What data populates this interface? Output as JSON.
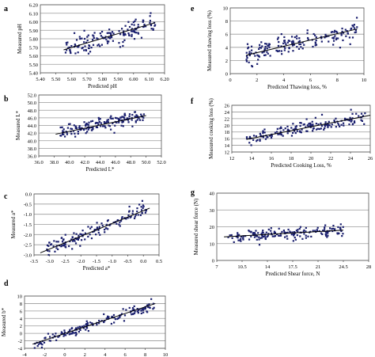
{
  "chart_data": [
    {
      "type": "scatter",
      "panel": "a",
      "xlabel": "Predicted pH",
      "ylabel": "Measured pH",
      "xlim": [
        5.4,
        6.2
      ],
      "ylim": [
        5.4,
        6.2
      ],
      "xticks": [
        "5.40",
        "5.50",
        "5.60",
        "5.70",
        "5.80",
        "5.90",
        "6.00",
        "6.10",
        "6.20"
      ],
      "yticks": [
        "5.40",
        "5.50",
        "5.60",
        "5.70",
        "5.80",
        "5.90",
        "6.00",
        "6.10",
        "6.20"
      ],
      "ytick_values": [
        5.4,
        5.5,
        5.6,
        5.7,
        5.8,
        5.9,
        6.0,
        6.1,
        6.2
      ],
      "grid": "horizontal",
      "x_range": [
        5.56,
        6.14
      ],
      "trend": [
        5.55,
        5.67,
        6.14,
        5.99
      ],
      "n_points": 150,
      "spread": 0.055
    },
    {
      "type": "scatter",
      "panel": "b",
      "xlabel": "Predicted L*",
      "ylabel": "Measured L*",
      "xlim": [
        36.0,
        52.0
      ],
      "ylim": [
        36.0,
        52.0
      ],
      "xticks": [
        "36.0",
        "38.0",
        "40.0",
        "42.0",
        "44.0",
        "46.0",
        "48.0",
        "50.0",
        "52.0"
      ],
      "yticks": [
        "36.0",
        "38.0",
        "40.0",
        "42.0",
        "44.0",
        "46.0",
        "48.0",
        "50.0",
        "52.0"
      ],
      "ytick_values": [
        36,
        38,
        40,
        42,
        44,
        46,
        48,
        50,
        52
      ],
      "grid": "horizontal",
      "x_range": [
        38.8,
        49.8
      ],
      "trend": [
        38.2,
        41.7,
        50.0,
        46.6
      ],
      "n_points": 160,
      "spread": 0.85
    },
    {
      "type": "scatter",
      "panel": "c",
      "xlabel": "Predicted a*",
      "ylabel": "Measured a*",
      "xlim": [
        -3.5,
        0.5
      ],
      "ylim": [
        -3.0,
        0.0
      ],
      "xticks": [
        "-3.5",
        "-3.0",
        "-2.5",
        "-2.0",
        "-1.5",
        "-1.0",
        "-0.5",
        "0.0",
        "0.5"
      ],
      "yticks": [
        "-3.0",
        "-2.5",
        "-2.0",
        "-1.5",
        "-1.0",
        "-0.5",
        "0.0"
      ],
      "ytick_values": [
        -3.0,
        -2.5,
        -2.0,
        -1.5,
        -1.0,
        -0.5,
        0.0
      ],
      "grid": "horizontal",
      "x_range": [
        -3.1,
        0.1
      ],
      "trend": [
        -3.3,
        -2.9,
        0.2,
        -0.7
      ],
      "n_points": 140,
      "spread": 0.18
    },
    {
      "type": "scatter",
      "panel": "d",
      "xlabel": "Predicted b*",
      "ylabel": "Measured b*",
      "xlim": [
        -4,
        10
      ],
      "ylim": [
        -4,
        10
      ],
      "xticks": [
        "-4",
        "-2",
        "0",
        "2",
        "4",
        "6",
        "8",
        "10"
      ],
      "yticks": [
        "-4",
        "-2",
        "0",
        "2",
        "4",
        "6",
        "8",
        "10"
      ],
      "ytick_values": [
        -4,
        -2,
        0,
        2,
        4,
        6,
        8,
        10
      ],
      "grid": "horizontal",
      "x_range": [
        -3.0,
        9.0
      ],
      "trend": [
        -3.2,
        -2.9,
        9.0,
        8.0
      ],
      "n_points": 160,
      "spread": 0.7
    },
    {
      "type": "scatter",
      "panel": "e",
      "xlabel": "Predicted Thawing loss, %",
      "ylabel": "Measured thawing loss (%)",
      "xlim": [
        0,
        10
      ],
      "ylim": [
        0,
        10
      ],
      "xticks": [
        "0",
        "2",
        "4",
        "6",
        "8",
        "10"
      ],
      "yticks": [
        "0",
        "2",
        "4",
        "6",
        "8",
        "10"
      ],
      "ytick_values": [
        0,
        2,
        4,
        6,
        8,
        10
      ],
      "grid": "horizontal",
      "x_range": [
        1.2,
        9.5
      ],
      "trend": [
        1.2,
        2.8,
        9.5,
        6.8
      ],
      "n_points": 170,
      "spread": 0.75
    },
    {
      "type": "scatter",
      "panel": "f",
      "xlabel": "Predicted Cooking Loss, %",
      "ylabel": "Measured cooking loss (%)",
      "xlim": [
        12,
        26
      ],
      "ylim": [
        12,
        26
      ],
      "xticks": [
        "12",
        "14",
        "16",
        "18",
        "20",
        "22",
        "24",
        "26"
      ],
      "yticks": [
        "12",
        "14",
        "16",
        "18",
        "20",
        "22",
        "24",
        "26"
      ],
      "ytick_values": [
        12,
        14,
        16,
        18,
        20,
        22,
        24,
        26
      ],
      "grid": "horizontal",
      "x_range": [
        13.5,
        25.5
      ],
      "trend": [
        13.5,
        15.8,
        26.0,
        23.0
      ],
      "n_points": 170,
      "spread": 1.0
    },
    {
      "type": "scatter",
      "panel": "g",
      "xlabel": "Predicted Shear force, N",
      "ylabel": "Measured shear force (N)",
      "xlim": [
        7,
        28
      ],
      "ylim": [
        0,
        40
      ],
      "xticks": [
        "7",
        "10.5",
        "14",
        "17.5",
        "21",
        "24.5",
        "28"
      ],
      "xtick_values": [
        7,
        10.5,
        14,
        17.5,
        21,
        24.5,
        28
      ],
      "yticks": [
        "0",
        "10",
        "20",
        "30",
        "40"
      ],
      "ytick_values": [
        0,
        10,
        20,
        30,
        40
      ],
      "grid": "horizontal",
      "x_range": [
        8.5,
        24.5
      ],
      "trend": [
        8.0,
        14.0,
        24.5,
        18.0
      ],
      "n_points": 170,
      "spread": 1.8
    }
  ],
  "marker_color": "#1a1f6e",
  "line_color": "#000000"
}
